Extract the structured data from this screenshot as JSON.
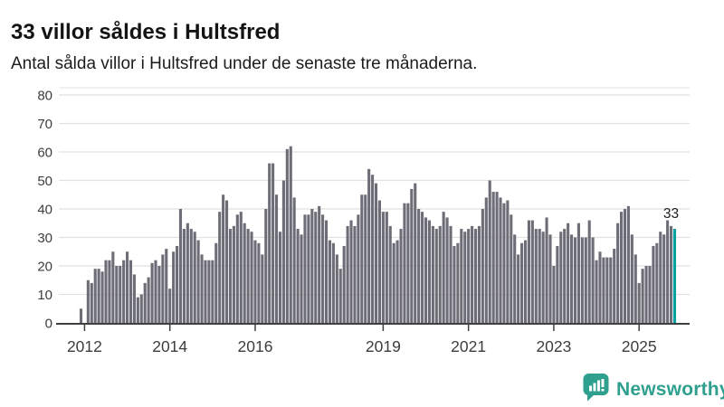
{
  "header": {
    "title": "33 villor såldes i Hultsfred",
    "subtitle": "Antal sålda villor i Hultsfred under de senaste tre månaderna."
  },
  "chart_data": {
    "type": "bar",
    "title": "33 villor såldes i Hultsfred",
    "subtitle": "Antal sålda villor i Hultsfred under de senaste tre månaderna.",
    "ylabel": "",
    "xlabel": "",
    "ylim": [
      0,
      80
    ],
    "yticks": [
      0,
      10,
      20,
      30,
      40,
      50,
      60,
      70,
      80
    ],
    "grid": true,
    "xticks": [
      {
        "label": "2012",
        "index": 1
      },
      {
        "label": "2014",
        "index": 25
      },
      {
        "label": "2016",
        "index": 49
      },
      {
        "label": "2019",
        "index": 85
      },
      {
        "label": "2021",
        "index": 109
      },
      {
        "label": "2023",
        "index": 133
      },
      {
        "label": "2025",
        "index": 157
      }
    ],
    "values": [
      5,
      0,
      15,
      14,
      19,
      19,
      18,
      22,
      22,
      25,
      20,
      20,
      22,
      25,
      22,
      17,
      9,
      10,
      14,
      16,
      21,
      22,
      20,
      24,
      26,
      12,
      25,
      27,
      40,
      33,
      35,
      33,
      32,
      29,
      24,
      22,
      22,
      22,
      28,
      39,
      45,
      43,
      33,
      34,
      38,
      39,
      35,
      33,
      32,
      29,
      28,
      24,
      40,
      56,
      56,
      45,
      32,
      50,
      61,
      62,
      44,
      33,
      31,
      38,
      38,
      40,
      39,
      41,
      38,
      36,
      29,
      28,
      24,
      19,
      27,
      34,
      36,
      34,
      38,
      45,
      45,
      54,
      52,
      49,
      43,
      39,
      39,
      34,
      28,
      29,
      33,
      42,
      42,
      47,
      49,
      40,
      39,
      37,
      36,
      34,
      33,
      34,
      39,
      37,
      34,
      27,
      28,
      33,
      32,
      33,
      34,
      33,
      34,
      40,
      44,
      50,
      46,
      46,
      44,
      42,
      43,
      38,
      31,
      24,
      28,
      29,
      36,
      36,
      33,
      33,
      32,
      37,
      31,
      20,
      27,
      32,
      33,
      35,
      31,
      30,
      35,
      30,
      30,
      36,
      30,
      22,
      25,
      23,
      23,
      23,
      26,
      35,
      39,
      40,
      41,
      31,
      24,
      14,
      19,
      20,
      20,
      27,
      28,
      32,
      31,
      36,
      34,
      33
    ],
    "highlight": {
      "index": 167,
      "value": 33,
      "label": "33"
    },
    "colors": {
      "bar": "#6d6d77",
      "highlight": "#00a2a0",
      "grid": "#e1e1e1",
      "axis": "#3f3f3f",
      "tick_text": "#3d3d3d",
      "annotation_text": "#1c1c1c"
    }
  },
  "footer": {
    "brand": "Newsworthy",
    "brand_color": "#2f9f8e"
  }
}
